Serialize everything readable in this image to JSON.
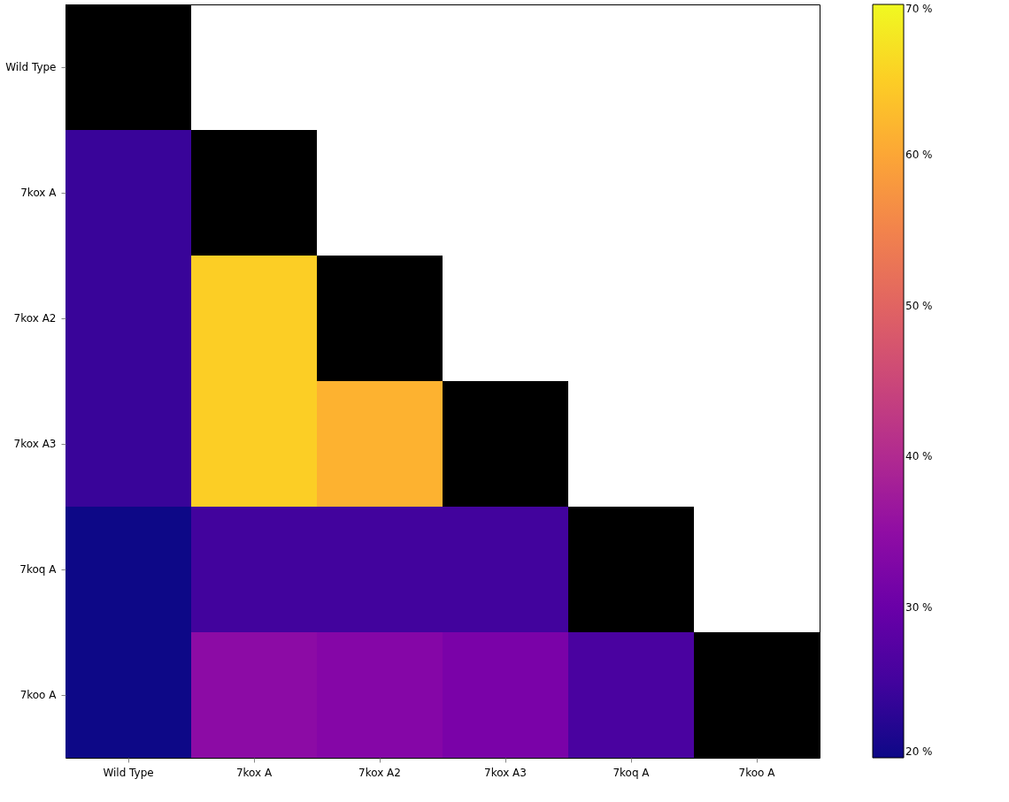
{
  "chart_data": {
    "type": "heatmap",
    "categories": [
      "Wild Type",
      "7kox A",
      "7kox A2",
      "7kox A3",
      "7koq A",
      "7koo A"
    ],
    "y_categories": [
      "Wild Type",
      "7kox A",
      "7kox A2",
      "7kox A3",
      "7koq A",
      "7koo A"
    ],
    "cells": [
      [
        null,
        null,
        null,
        null,
        null,
        null
      ],
      [
        24,
        null,
        null,
        null,
        null,
        null
      ],
      [
        24,
        65,
        null,
        null,
        null,
        null
      ],
      [
        24,
        65,
        61.5,
        null,
        null,
        null
      ],
      [
        20,
        25,
        25,
        25,
        null,
        null
      ],
      [
        20,
        34.5,
        33.5,
        32,
        26,
        null
      ]
    ],
    "clim": [
      20,
      70
    ],
    "cticks": [
      {
        "value": 20,
        "label": "20 %"
      },
      {
        "value": 30,
        "label": "30 %"
      },
      {
        "value": 40,
        "label": "40 %"
      },
      {
        "value": 50,
        "label": "50 %"
      },
      {
        "value": 60,
        "label": "60 %"
      },
      {
        "value": 70,
        "label": "70 %"
      }
    ]
  }
}
